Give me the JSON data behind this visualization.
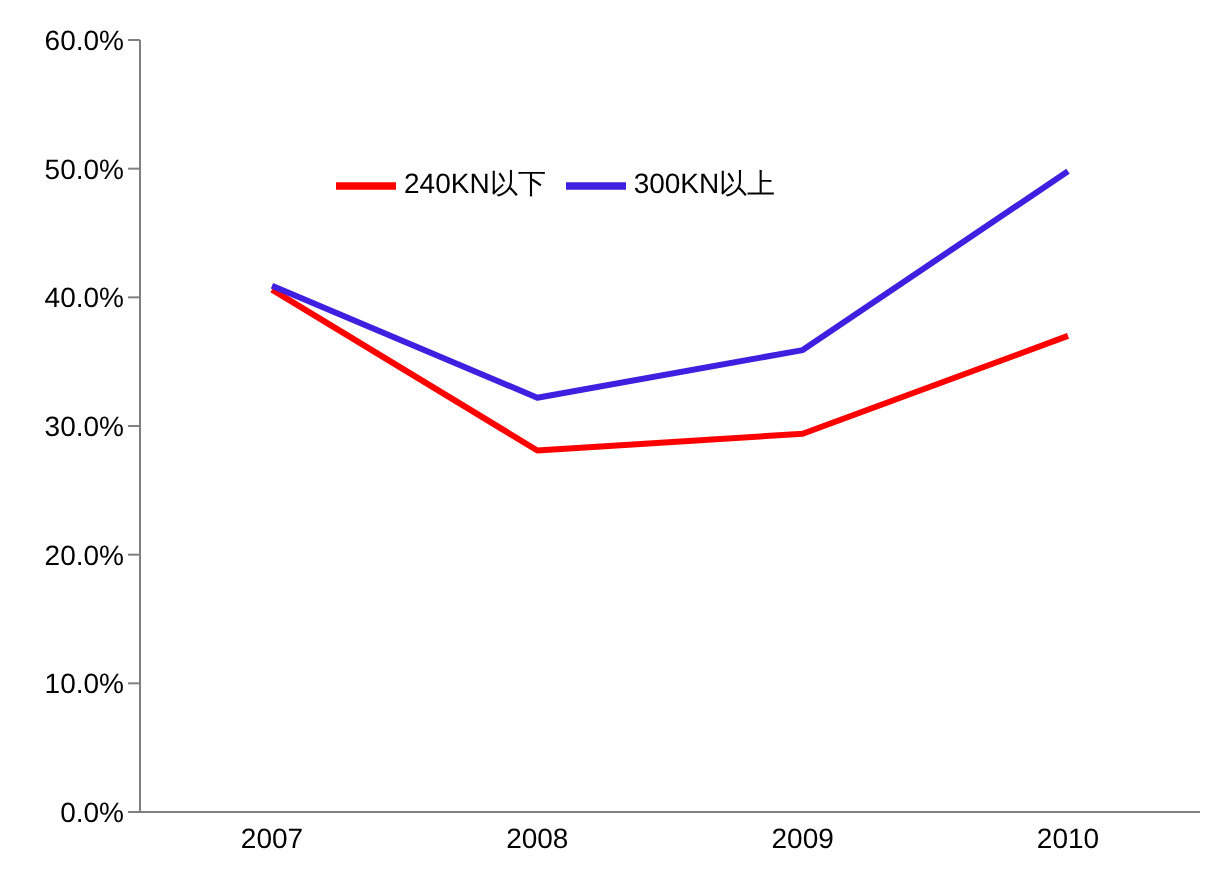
{
  "chart_data": {
    "type": "line",
    "categories": [
      "2007",
      "2008",
      "2009",
      "2010"
    ],
    "series": [
      {
        "name": "240KN以下",
        "color": "#ff0000",
        "values": [
          40.6,
          28.1,
          29.4,
          37.0
        ]
      },
      {
        "name": "300KN以上",
        "color": "#3f1fe0",
        "values": [
          40.9,
          32.2,
          35.9,
          49.8
        ]
      }
    ],
    "ylim": [
      0,
      60
    ],
    "yticks": [
      {
        "value": 0,
        "label": "0.0%"
      },
      {
        "value": 10,
        "label": "10.0%"
      },
      {
        "value": 20,
        "label": "20.0%"
      },
      {
        "value": 30,
        "label": "30.0%"
      },
      {
        "value": 40,
        "label": "40.0%"
      },
      {
        "value": 50,
        "label": "50.0%"
      },
      {
        "value": 60,
        "label": "60.0%"
      }
    ],
    "grid": false,
    "legend": "top",
    "marker": "none",
    "line_style": "solid"
  }
}
